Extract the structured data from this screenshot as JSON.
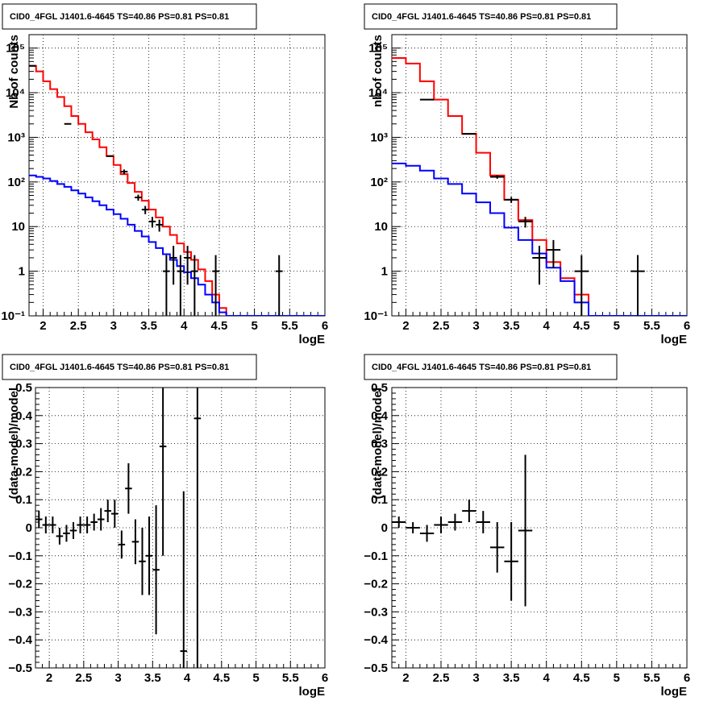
{
  "chart_data": [
    {
      "panel": "top-left",
      "type": "line",
      "title": "CID0_4FGL J1401.6-4645 TS=40.86 PS=0.81 PS=0.81",
      "xlabel": "logE",
      "ylabel": "Nb of counts",
      "xlim": [
        1.8,
        6.0
      ],
      "ylim": [
        0.1,
        200000
      ],
      "yscale": "log",
      "grid": true,
      "xticks": [
        "2",
        "2.5",
        "3",
        "3.5",
        "4",
        "4.5",
        "5",
        "5.5",
        "6"
      ],
      "yticks": [
        "10⁻¹",
        "1",
        "10",
        "10²",
        "10³",
        "10⁴",
        "10⁵"
      ],
      "bin_width": 0.1,
      "series": [
        {
          "color": "#ff0000",
          "style": "step",
          "x": [
            1.8,
            1.9,
            2.0,
            2.1,
            2.2,
            2.3,
            2.4,
            2.5,
            2.6,
            2.7,
            2.8,
            2.9,
            3.0,
            3.1,
            3.2,
            3.3,
            3.4,
            3.5,
            3.6,
            3.7,
            3.8,
            3.9,
            4.0,
            4.1,
            4.2,
            4.3,
            4.4,
            4.5,
            4.6
          ],
          "values": [
            40000,
            30000,
            18000,
            12000,
            8000,
            5000,
            3000,
            2000,
            1300,
            900,
            600,
            380,
            240,
            150,
            95,
            60,
            38,
            24,
            16,
            10,
            6.5,
            4.2,
            2.7,
            1.8,
            1.1,
            0.6,
            0.3,
            0.15,
            0.1
          ]
        },
        {
          "color": "#0000ff",
          "style": "step",
          "x": [
            1.8,
            1.9,
            2.0,
            2.1,
            2.2,
            2.3,
            2.4,
            2.5,
            2.6,
            2.7,
            2.8,
            2.9,
            3.0,
            3.1,
            3.2,
            3.3,
            3.4,
            3.5,
            3.6,
            3.7,
            3.8,
            3.9,
            4.0,
            4.1,
            4.2,
            4.3,
            4.4,
            4.5,
            4.6
          ],
          "values": [
            140,
            130,
            120,
            105,
            90,
            78,
            65,
            55,
            45,
            37,
            30,
            24,
            19,
            15,
            11,
            8,
            6,
            4.5,
            3.3,
            2.4,
            1.8,
            1.3,
            0.95,
            0.7,
            0.5,
            0.3,
            0.2,
            0.12,
            0.1
          ]
        },
        {
          "color": "#000000",
          "style": "points",
          "x": [
            1.85,
            2.35,
            2.95,
            3.15,
            3.35,
            3.45,
            3.55,
            3.65,
            3.75,
            3.85,
            3.95,
            4.05,
            4.15,
            4.45,
            5.35
          ],
          "values": [
            40000,
            2000,
            380,
            170,
            45,
            24,
            13,
            11,
            1.0,
            2.0,
            1.0,
            2.0,
            1.0,
            1.0,
            1.0
          ],
          "err_lo": [
            0,
            0,
            0,
            20,
            7,
            5,
            3.5,
            3.3,
            0.9,
            1.5,
            0.9,
            1.5,
            0.9,
            0.9,
            0.9
          ],
          "err_hi": [
            0,
            0,
            0,
            20,
            7,
            5,
            3.5,
            3.3,
            1.3,
            1.7,
            1.3,
            1.7,
            1.3,
            1.3,
            1.3
          ]
        }
      ]
    },
    {
      "panel": "top-right",
      "type": "line",
      "title": "CID0_4FGL J1401.6-4645 TS=40.86 PS=0.81 PS=0.81",
      "xlabel": "logE",
      "ylabel": "nb of counts",
      "xlim": [
        1.8,
        6.0
      ],
      "ylim": [
        0.1,
        200000
      ],
      "yscale": "log",
      "grid": true,
      "xticks": [
        "2",
        "2.5",
        "3",
        "3.5",
        "4",
        "4.5",
        "5",
        "5.5",
        "6"
      ],
      "yticks": [
        "10⁻¹",
        "1",
        "10",
        "10²",
        "10³",
        "10⁴",
        "10⁵"
      ],
      "bin_width": 0.2,
      "series": [
        {
          "color": "#ff0000",
          "style": "step",
          "x": [
            1.8,
            2.0,
            2.2,
            2.4,
            2.6,
            2.8,
            3.0,
            3.2,
            3.4,
            3.6,
            3.8,
            4.0,
            4.2,
            4.4,
            4.6
          ],
          "values": [
            60000,
            45000,
            18000,
            7000,
            3000,
            1200,
            450,
            140,
            40,
            14,
            5,
            1.6,
            0.7,
            0.3,
            0.1
          ]
        },
        {
          "color": "#0000ff",
          "style": "step",
          "x": [
            1.8,
            2.0,
            2.2,
            2.4,
            2.6,
            2.8,
            3.0,
            3.2,
            3.4,
            3.6,
            3.8,
            4.0,
            4.2,
            4.4,
            4.6
          ],
          "values": [
            260,
            230,
            180,
            120,
            90,
            55,
            35,
            20,
            9.5,
            5,
            2.5,
            1.2,
            0.6,
            0.2,
            0.1
          ]
        },
        {
          "color": "#000000",
          "style": "points",
          "x": [
            2.3,
            2.9,
            3.3,
            3.5,
            3.7,
            3.9,
            4.1,
            4.5,
            5.3
          ],
          "values": [
            7000,
            1200,
            130,
            40,
            13,
            2.0,
            3.0,
            1.0,
            1.0
          ],
          "err_lo": [
            0,
            0,
            12,
            6,
            3.5,
            1.5,
            1.8,
            0.9,
            0.9
          ],
          "err_hi": [
            0,
            0,
            12,
            6,
            3.5,
            1.7,
            2.0,
            1.3,
            1.3
          ]
        }
      ]
    },
    {
      "panel": "bottom-left",
      "type": "scatter",
      "title": "CID0_4FGL J1401.6-4645 TS=40.86 PS=0.81 PS=0.81",
      "xlabel": "logE",
      "ylabel": "(data-model)/model",
      "xlim": [
        1.8,
        6.0
      ],
      "ylim": [
        -0.5,
        0.5
      ],
      "grid": true,
      "xticks": [
        "2",
        "2.5",
        "3",
        "3.5",
        "4",
        "4.5",
        "5",
        "5.5",
        "6"
      ],
      "yticks": [
        "−0.5",
        "−0.4",
        "−0.3",
        "−0.2",
        "−0.1",
        "0",
        "0.1",
        "0.2",
        "0.3",
        "0.4",
        "0.5"
      ],
      "bin_width": 0.1,
      "points": {
        "x": [
          1.85,
          1.95,
          2.05,
          2.15,
          2.25,
          2.35,
          2.45,
          2.55,
          2.65,
          2.75,
          2.85,
          2.95,
          3.05,
          3.15,
          3.25,
          3.35,
          3.45,
          3.55,
          3.65,
          3.95,
          4.15
        ],
        "values": [
          0.03,
          0.01,
          0.01,
          -0.03,
          -0.02,
          -0.01,
          0.01,
          0.01,
          0.02,
          0.03,
          0.06,
          0.05,
          -0.06,
          0.14,
          -0.05,
          -0.12,
          -0.1,
          -0.15,
          0.29,
          -0.44,
          0.39
        ],
        "errors": [
          0.03,
          0.03,
          0.03,
          0.03,
          0.03,
          0.03,
          0.03,
          0.03,
          0.03,
          0.04,
          0.04,
          0.05,
          0.05,
          0.09,
          0.08,
          0.12,
          0.14,
          0.23,
          0.39,
          0.57,
          0.9
        ]
      }
    },
    {
      "panel": "bottom-right",
      "type": "scatter",
      "title": "CID0_4FGL J1401.6-4645 TS=40.86 PS=0.81 PS=0.81",
      "xlabel": "logE",
      "ylabel": "(data-model)/model",
      "xlim": [
        1.8,
        6.0
      ],
      "ylim": [
        -0.5,
        0.5
      ],
      "grid": true,
      "xticks": [
        "2",
        "2.5",
        "3",
        "3.5",
        "4",
        "4.5",
        "5",
        "5.5",
        "6"
      ],
      "yticks": [
        "−0.5",
        "−0.4",
        "−0.3",
        "−0.2",
        "−0.1",
        "0",
        "0.1",
        "0.2",
        "0.3",
        "0.4",
        "0.5"
      ],
      "bin_width": 0.2,
      "points": {
        "x": [
          1.9,
          2.1,
          2.3,
          2.5,
          2.7,
          2.9,
          3.1,
          3.3,
          3.5,
          3.7
        ],
        "values": [
          0.02,
          0.0,
          -0.02,
          0.01,
          0.02,
          0.06,
          0.02,
          -0.07,
          -0.12,
          -0.01
        ],
        "errors": [
          0.02,
          0.02,
          0.03,
          0.03,
          0.03,
          0.04,
          0.04,
          0.09,
          0.14,
          0.27
        ]
      }
    }
  ]
}
